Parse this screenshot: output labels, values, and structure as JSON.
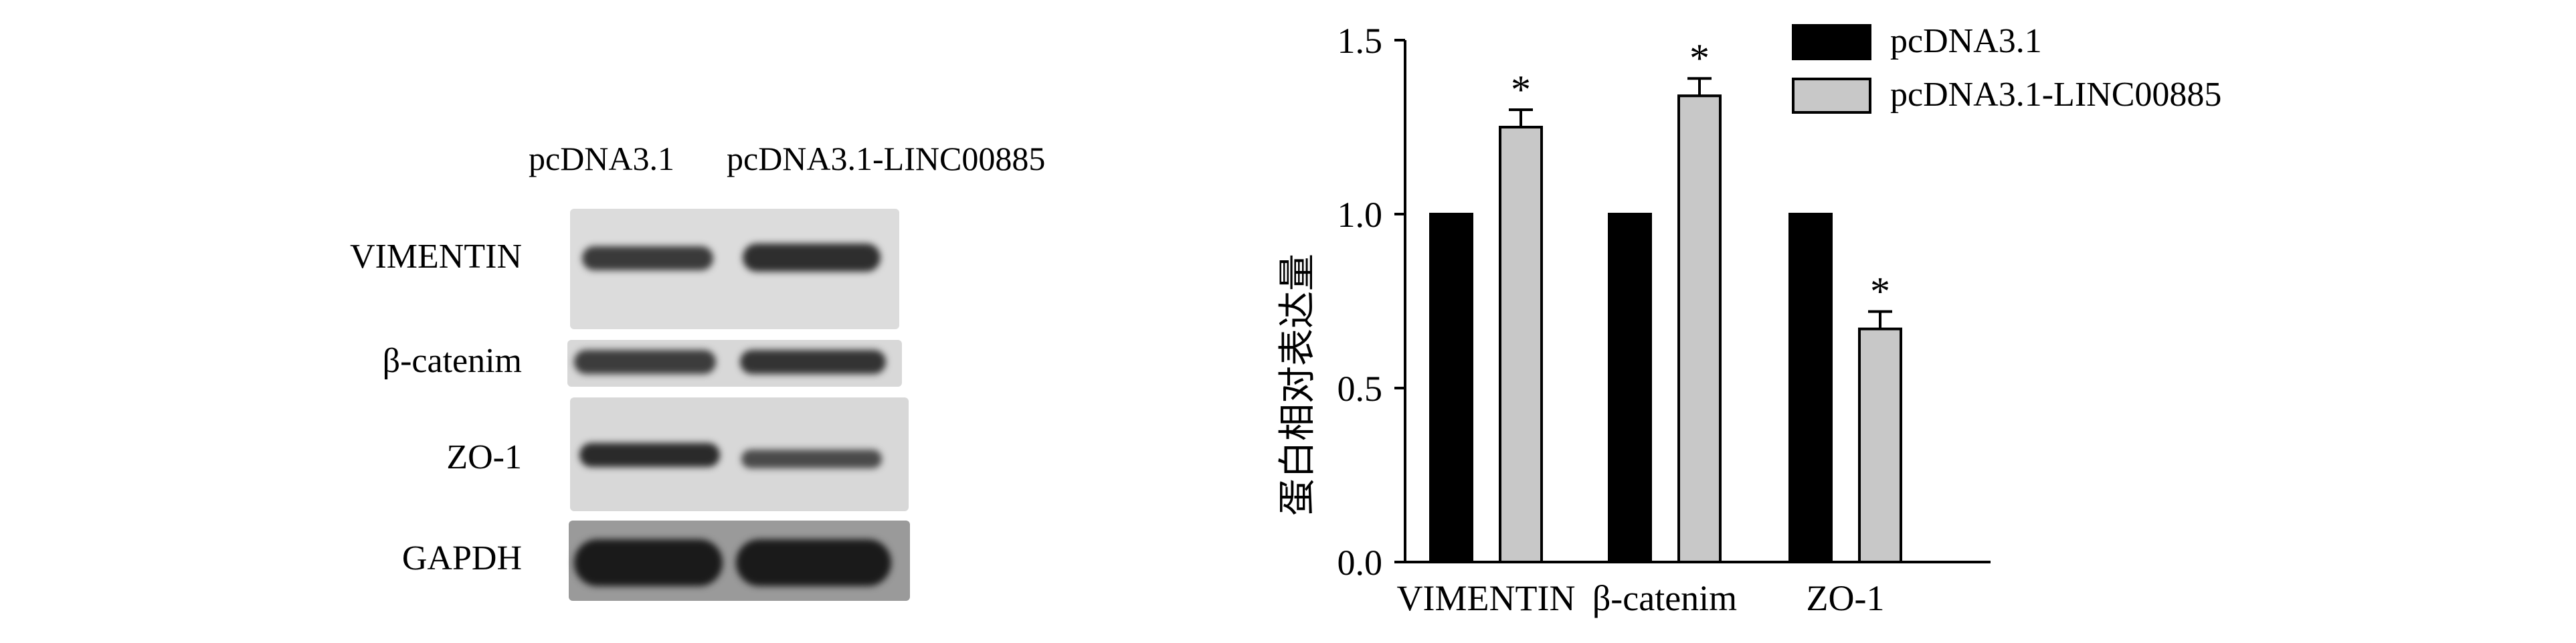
{
  "western_blot": {
    "lanes": [
      "pcDNA3.1",
      "pcDNA3.1-LINC00885"
    ],
    "rows": [
      "VIMENTIN",
      "β-catenim",
      "ZO-1",
      "GAPDH"
    ]
  },
  "chart_data": {
    "type": "bar",
    "categories": [
      "VIMENTIN",
      "β-catenim",
      "ZO-1"
    ],
    "series": [
      {
        "name": "pcDNA3.1",
        "values": [
          1.0,
          1.0,
          1.0
        ],
        "color": "#000000"
      },
      {
        "name": "pcDNA3.1-LINC00885",
        "values": [
          1.25,
          1.34,
          0.67
        ],
        "error": [
          0.05,
          0.05,
          0.05
        ],
        "color": "#c8c8c8"
      }
    ],
    "significance": [
      "*",
      "*",
      "*"
    ],
    "ylabel": "蛋白相对表达量",
    "ylim": [
      0.0,
      1.5
    ],
    "yticks": [
      "0.0",
      "0.5",
      "1.0",
      "1.5"
    ],
    "legend": "top-right",
    "grid": false
  }
}
